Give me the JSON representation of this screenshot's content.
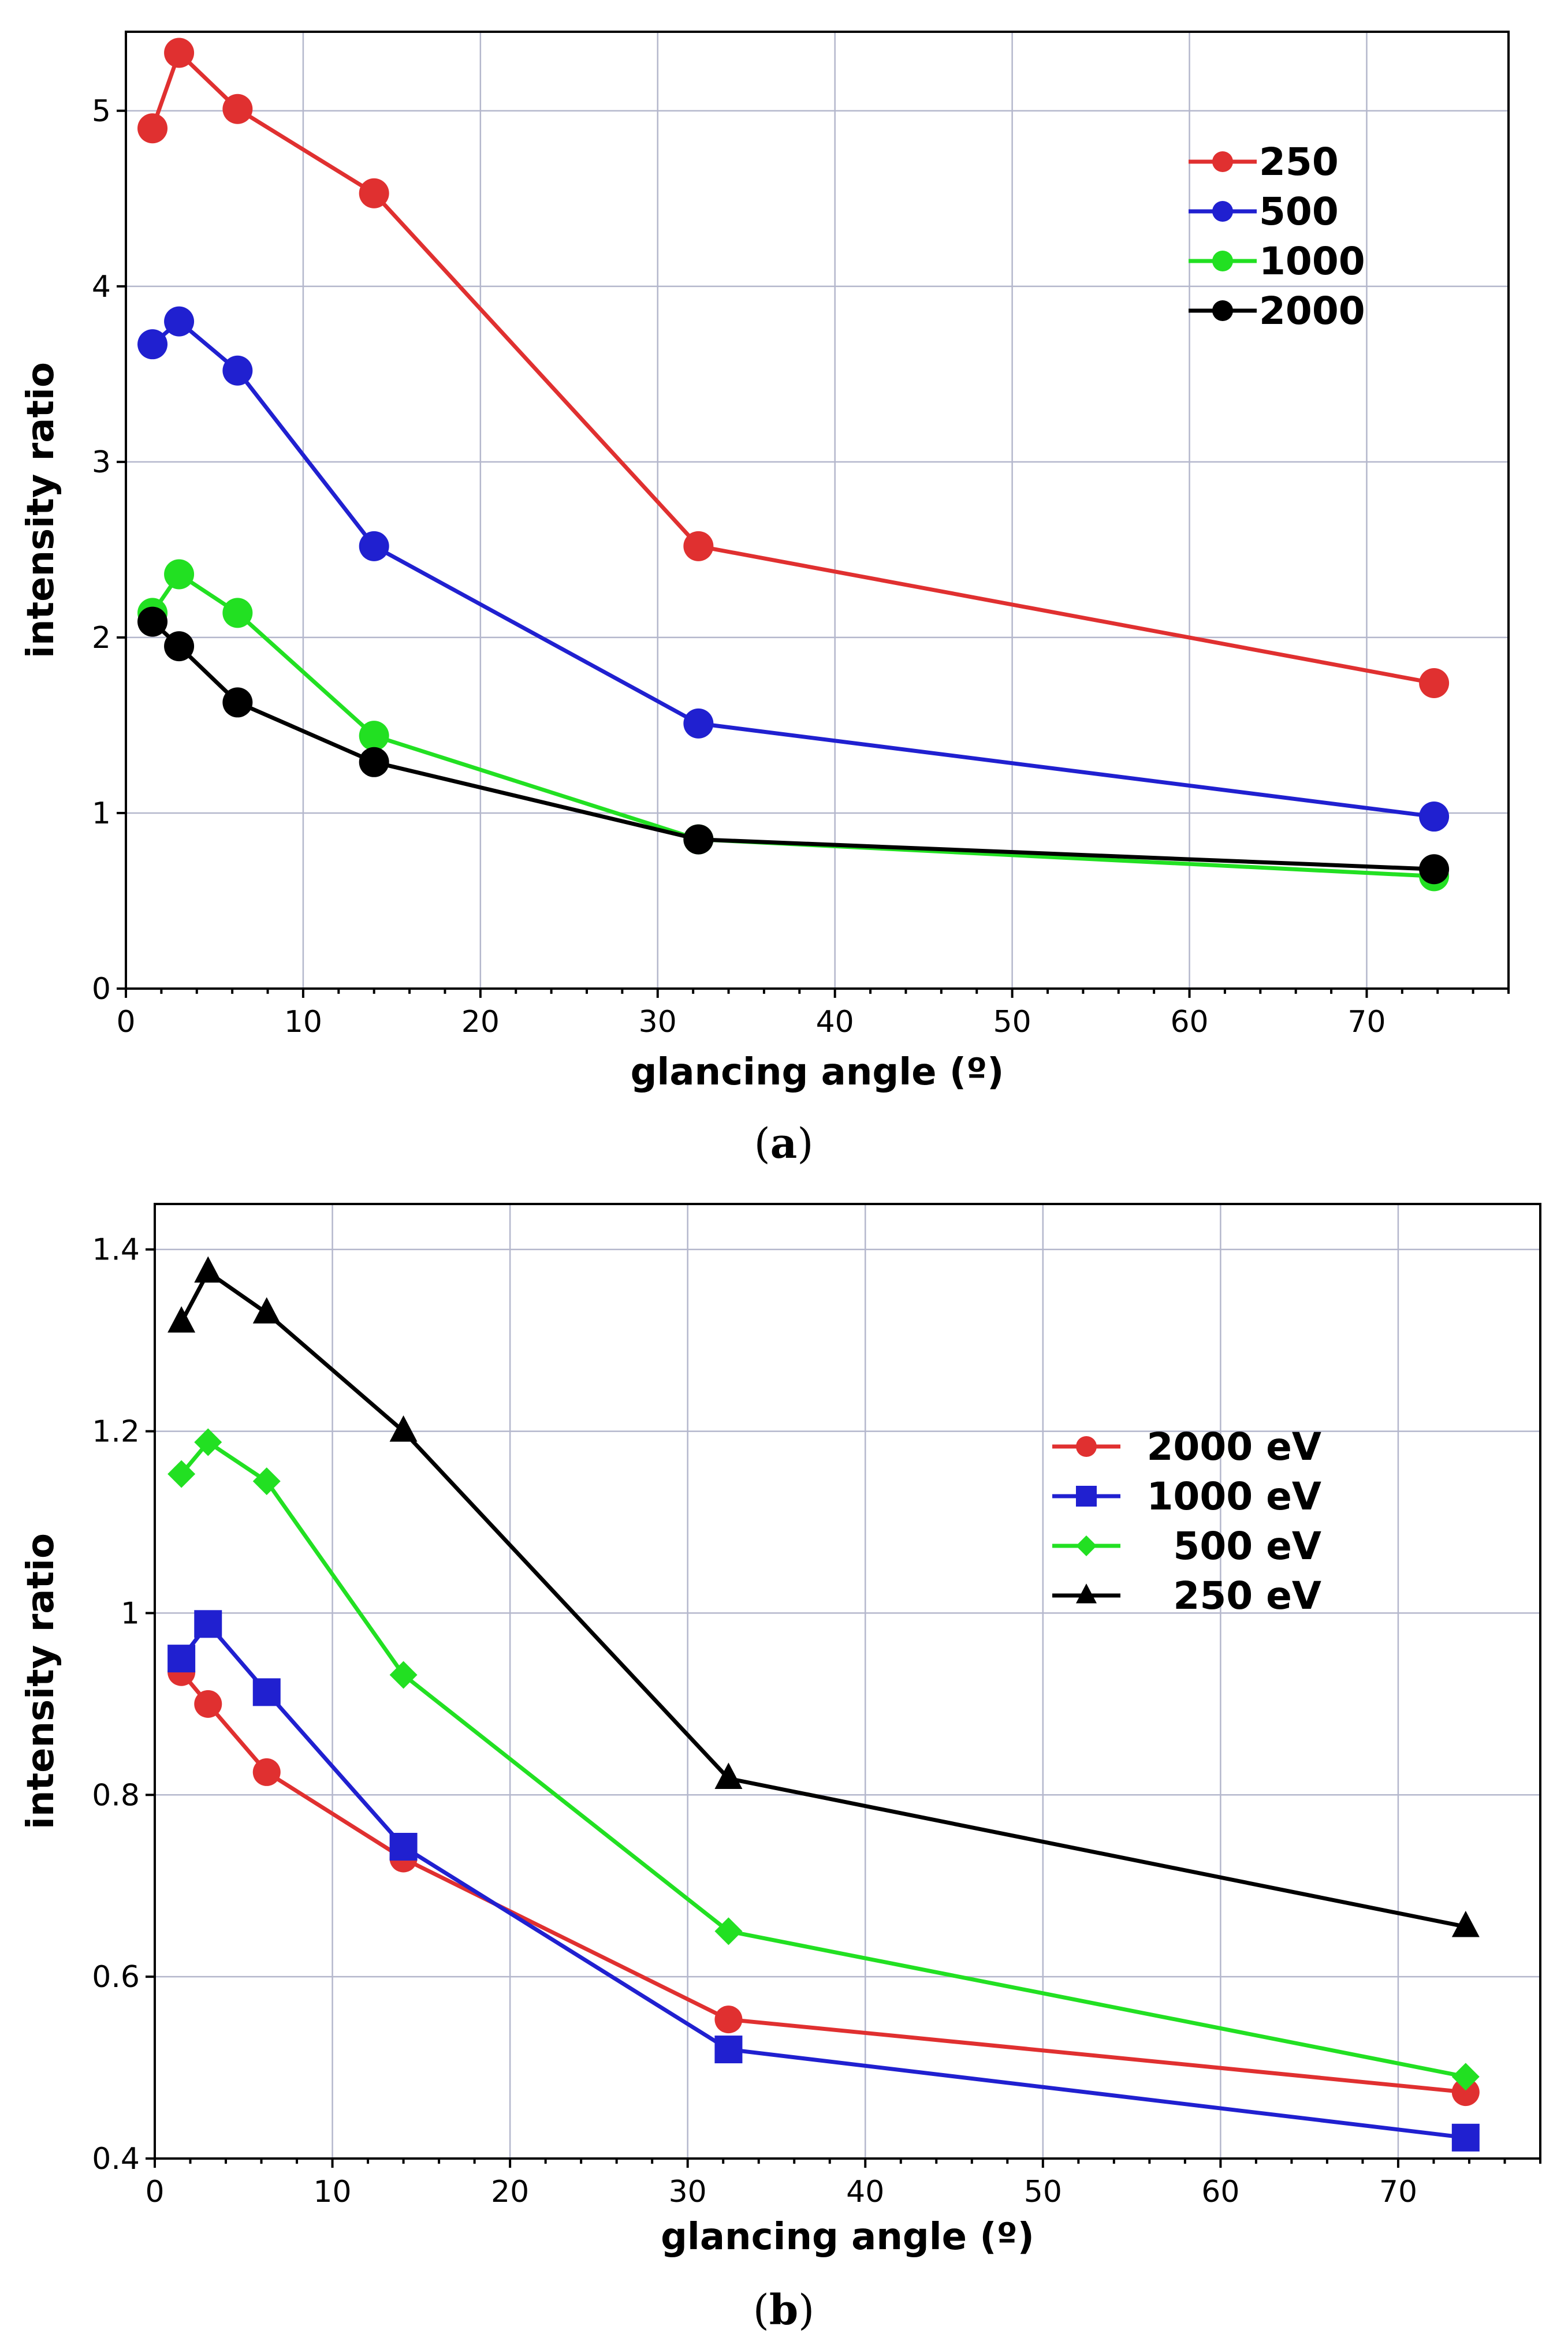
{
  "chart_data": [
    {
      "type": "line",
      "panel": "a",
      "caption": "a",
      "title": "",
      "xlabel": "glancing angle (º)",
      "ylabel": "intensity ratio",
      "xlim": [
        0,
        78
      ],
      "ylim": [
        0,
        5.45
      ],
      "xticks": [
        0,
        10,
        20,
        30,
        40,
        50,
        60,
        70
      ],
      "yticks": [
        0,
        1,
        2,
        3,
        4,
        5
      ],
      "yticklabels": [
        "0",
        "1",
        "2",
        "3",
        "4",
        "5"
      ],
      "grid": true,
      "legend_position": "top-right",
      "x": [
        1.5,
        3,
        6.3,
        14,
        32.3,
        73.8
      ],
      "series": [
        {
          "name": "250",
          "color": "#e03030",
          "marker": "circle",
          "values": [
            4.9,
            5.33,
            5.01,
            4.53,
            2.52,
            1.74
          ]
        },
        {
          "name": "500",
          "color": "#2020d0",
          "marker": "circle",
          "values": [
            3.67,
            3.8,
            3.52,
            2.52,
            1.51,
            0.98
          ]
        },
        {
          "name": "1000",
          "color": "#22e022",
          "marker": "circle",
          "values": [
            2.14,
            2.36,
            2.14,
            1.44,
            0.85,
            0.64
          ]
        },
        {
          "name": "2000",
          "color": "#000000",
          "marker": "circle",
          "values": [
            2.09,
            1.95,
            1.63,
            1.29,
            0.85,
            0.68
          ]
        }
      ]
    },
    {
      "type": "line",
      "panel": "b",
      "caption": "b",
      "title": "",
      "xlabel": "glancing angle (º)",
      "ylabel": "intensity ratio",
      "xlim": [
        0,
        78
      ],
      "ylim": [
        0.4,
        1.45
      ],
      "xticks": [
        0,
        10,
        20,
        30,
        40,
        50,
        60,
        70
      ],
      "yticks": [
        0.4,
        0.6,
        0.8,
        1.0,
        1.2,
        1.4
      ],
      "yticklabels": [
        "0.4",
        "0.6",
        "0.8",
        "1",
        "1.2",
        "1.4"
      ],
      "grid": true,
      "legend_position": "center-right",
      "x": [
        1.5,
        3,
        6.3,
        14,
        32.3,
        73.8
      ],
      "series": [
        {
          "name": "2000 eV",
          "color": "#e03030",
          "marker": "circle",
          "values": [
            0.935,
            0.9,
            0.825,
            0.73,
            0.553,
            0.473
          ]
        },
        {
          "name": "1000 eV",
          "color": "#2020d0",
          "marker": "square",
          "values": [
            0.95,
            0.988,
            0.913,
            0.743,
            0.52,
            0.423
          ]
        },
        {
          "name": "500 eV",
          "color": "#22e022",
          "marker": "diamond",
          "values": [
            1.153,
            1.188,
            1.145,
            0.932,
            0.65,
            0.49
          ]
        },
        {
          "name": "250 eV",
          "color": "#000000",
          "marker": "triangle",
          "values": [
            1.32,
            1.375,
            1.33,
            1.2,
            0.818,
            0.655
          ]
        }
      ]
    }
  ]
}
